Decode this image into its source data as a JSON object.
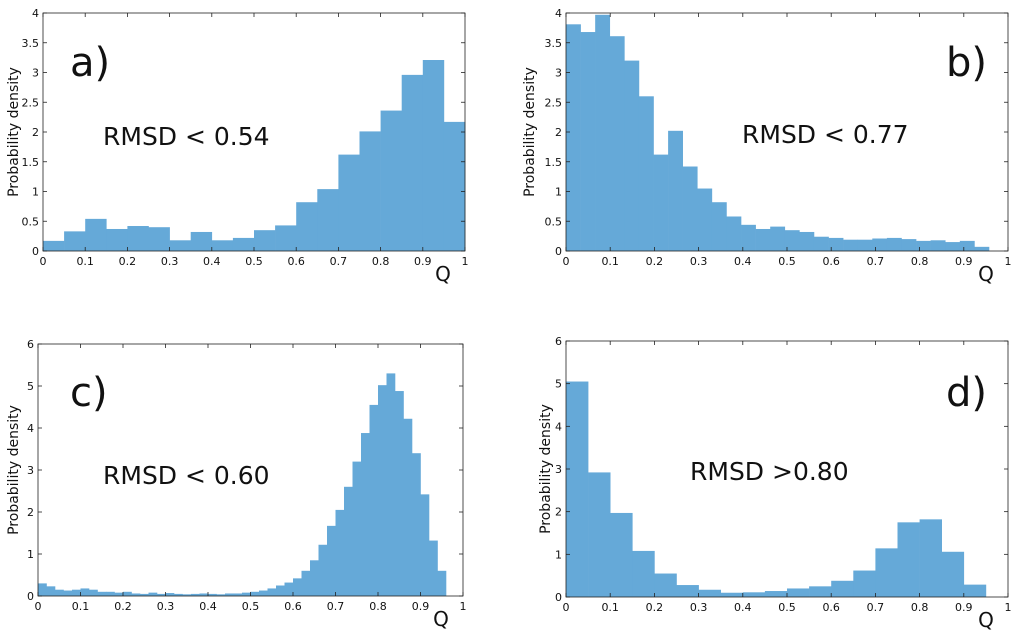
{
  "colors": {
    "bar": "#65A9D8",
    "axis": "#222222",
    "text": "#111111"
  },
  "chart_data": [
    {
      "type": "bar",
      "panel_label": "a)",
      "annotation": "RMSD < 0.54",
      "xlabel": "Q",
      "ylabel": "Probability density",
      "xlim": [
        0,
        1
      ],
      "ylim": [
        0,
        4
      ],
      "xticks": [
        "0",
        "0.1",
        "0.2",
        "0.3",
        "0.4",
        "0.5",
        "0.6",
        "0.7",
        "0.8",
        "0.9",
        "1"
      ],
      "yticks": [
        "0",
        "0.5",
        "1",
        "1.5",
        "2",
        "2.5",
        "3",
        "3.5",
        "4"
      ],
      "bin_width": 0.05,
      "bins_start": [
        0,
        0.05,
        0.1,
        0.15,
        0.2,
        0.25,
        0.3,
        0.35,
        0.4,
        0.45,
        0.5,
        0.55,
        0.6,
        0.65,
        0.7,
        0.75,
        0.8,
        0.85,
        0.9,
        0.95
      ],
      "values": [
        0.17,
        0.33,
        0.54,
        0.37,
        0.42,
        0.4,
        0.18,
        0.32,
        0.18,
        0.22,
        0.35,
        0.43,
        0.82,
        1.04,
        1.62,
        2.01,
        2.36,
        2.96,
        3.21,
        2.17
      ]
    },
    {
      "type": "bar",
      "panel_label": "b)",
      "annotation": "RMSD < 0.77",
      "xlabel": "Q",
      "ylabel": "Probability density",
      "xlim": [
        0,
        1
      ],
      "ylim": [
        0,
        4
      ],
      "xticks": [
        "0",
        "0.1",
        "0.2",
        "0.3",
        "0.4",
        "0.5",
        "0.6",
        "0.7",
        "0.8",
        "0.9",
        "1"
      ],
      "yticks": [
        "0",
        "0.5",
        "1",
        "1.5",
        "2",
        "2.5",
        "3",
        "3.5",
        "4"
      ],
      "bin_width": 0.033,
      "bins_start": [
        0,
        0.033,
        0.066,
        0.099,
        0.132,
        0.165,
        0.198,
        0.231,
        0.264,
        0.297,
        0.33,
        0.363,
        0.396,
        0.429,
        0.462,
        0.495,
        0.528,
        0.561,
        0.594,
        0.627,
        0.66,
        0.693,
        0.726,
        0.759,
        0.792,
        0.825,
        0.858,
        0.891,
        0.924
      ],
      "values": [
        3.81,
        3.68,
        3.97,
        3.61,
        3.2,
        2.6,
        1.62,
        2.02,
        1.42,
        1.05,
        0.82,
        0.58,
        0.44,
        0.37,
        0.41,
        0.35,
        0.32,
        0.24,
        0.22,
        0.19,
        0.19,
        0.21,
        0.22,
        0.2,
        0.17,
        0.18,
        0.15,
        0.17,
        0.07
      ]
    },
    {
      "type": "bar",
      "panel_label": "c)",
      "annotation": "RMSD < 0.60",
      "xlabel": "Q",
      "ylabel": "Probability density",
      "xlim": [
        0,
        1
      ],
      "ylim": [
        0,
        6
      ],
      "xticks": [
        "0",
        "0.1",
        "0.2",
        "0.3",
        "0.4",
        "0.5",
        "0.6",
        "0.7",
        "0.8",
        "0.9",
        "1"
      ],
      "yticks": [
        "0",
        "1",
        "2",
        "3",
        "4",
        "5",
        "6"
      ],
      "bin_width": 0.02,
      "bins_start": [
        0,
        0.02,
        0.04,
        0.06,
        0.08,
        0.1,
        0.12,
        0.14,
        0.16,
        0.18,
        0.2,
        0.22,
        0.24,
        0.26,
        0.28,
        0.3,
        0.32,
        0.34,
        0.36,
        0.38,
        0.4,
        0.42,
        0.44,
        0.46,
        0.48,
        0.5,
        0.52,
        0.54,
        0.56,
        0.58,
        0.6,
        0.62,
        0.64,
        0.66,
        0.68,
        0.7,
        0.72,
        0.74,
        0.76,
        0.78,
        0.8,
        0.82,
        0.84,
        0.86,
        0.88,
        0.9,
        0.92,
        0.94
      ],
      "values": [
        0.3,
        0.23,
        0.15,
        0.13,
        0.15,
        0.18,
        0.15,
        0.1,
        0.1,
        0.08,
        0.1,
        0.06,
        0.05,
        0.08,
        0.05,
        0.07,
        0.05,
        0.04,
        0.05,
        0.06,
        0.05,
        0.04,
        0.06,
        0.06,
        0.08,
        0.1,
        0.13,
        0.18,
        0.25,
        0.32,
        0.42,
        0.6,
        0.85,
        1.22,
        1.67,
        2.05,
        2.6,
        3.2,
        3.88,
        4.55,
        5.02,
        5.3,
        4.88,
        4.22,
        3.4,
        2.42,
        1.32,
        0.6
      ]
    },
    {
      "type": "bar",
      "panel_label": "d)",
      "annotation": "RMSD >0.80",
      "xlabel": "Q",
      "ylabel": "Probability density",
      "xlim": [
        0,
        1
      ],
      "ylim": [
        0,
        6
      ],
      "xticks": [
        "0",
        "0.1",
        "0.2",
        "0.3",
        "0.4",
        "0.5",
        "0.6",
        "0.7",
        "0.8",
        "0.9",
        "1"
      ],
      "yticks": [
        "0",
        "1",
        "2",
        "3",
        "4",
        "5",
        "6"
      ],
      "bin_width": 0.05,
      "bins_start": [
        0,
        0.05,
        0.1,
        0.15,
        0.2,
        0.25,
        0.3,
        0.35,
        0.4,
        0.45,
        0.5,
        0.55,
        0.6,
        0.65,
        0.7,
        0.75,
        0.8,
        0.85,
        0.9
      ],
      "values": [
        5.05,
        2.92,
        1.97,
        1.08,
        0.55,
        0.28,
        0.17,
        0.1,
        0.11,
        0.14,
        0.2,
        0.25,
        0.38,
        0.62,
        1.14,
        1.75,
        1.82,
        1.06,
        0.29
      ]
    }
  ]
}
